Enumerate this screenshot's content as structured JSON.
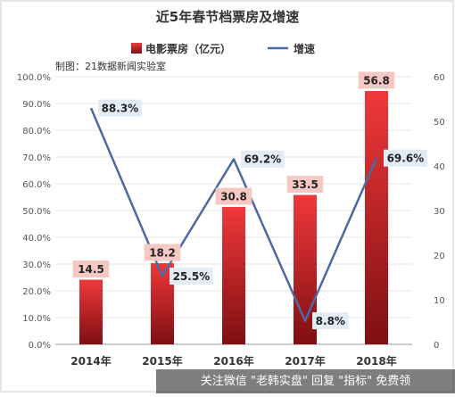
{
  "chart_data": {
    "type": "bar",
    "title": "近5年春节档票房及增速",
    "subtitle": "制图：21数据新闻实验室",
    "categories": [
      "2014年",
      "2015年",
      "2016年",
      "2017年",
      "2018年"
    ],
    "series": [
      {
        "name": "电影票房（亿元）",
        "type": "bar",
        "axis": "right",
        "values": [
          14.5,
          18.2,
          30.8,
          33.5,
          56.8
        ],
        "labels": [
          "14.5",
          "18.2",
          "30.8",
          "33.5",
          "56.8"
        ]
      },
      {
        "name": "增速",
        "type": "line",
        "axis": "left",
        "values": [
          88.3,
          25.5,
          69.2,
          8.8,
          69.6
        ],
        "labels": [
          "88.3%",
          "25.5%",
          "69.2%",
          "8.8%",
          "69.6%"
        ]
      }
    ],
    "y_left": {
      "min": 0,
      "max": 100,
      "ticks": [
        "0.0%",
        "10.0%",
        "20.0%",
        "30.0%",
        "40.0%",
        "50.0%",
        "60.0%",
        "70.0%",
        "80.0%",
        "90.0%",
        "100.0%"
      ]
    },
    "y_right": {
      "min": 0,
      "max": 60,
      "ticks": [
        "0",
        "10",
        "20",
        "30",
        "40",
        "50",
        "60"
      ]
    },
    "legend_position": "top-center",
    "colors": {
      "bar_top": "#f0383a",
      "bar_bottom": "#7e0f12",
      "line": "#4a6aa5",
      "bar_label_bg": "#f6c8c4",
      "line_label_bg": "#e3ebf5"
    }
  },
  "watermark": "关注微信 \"老韩实盘\" 回复 \"指标\" 免费领"
}
